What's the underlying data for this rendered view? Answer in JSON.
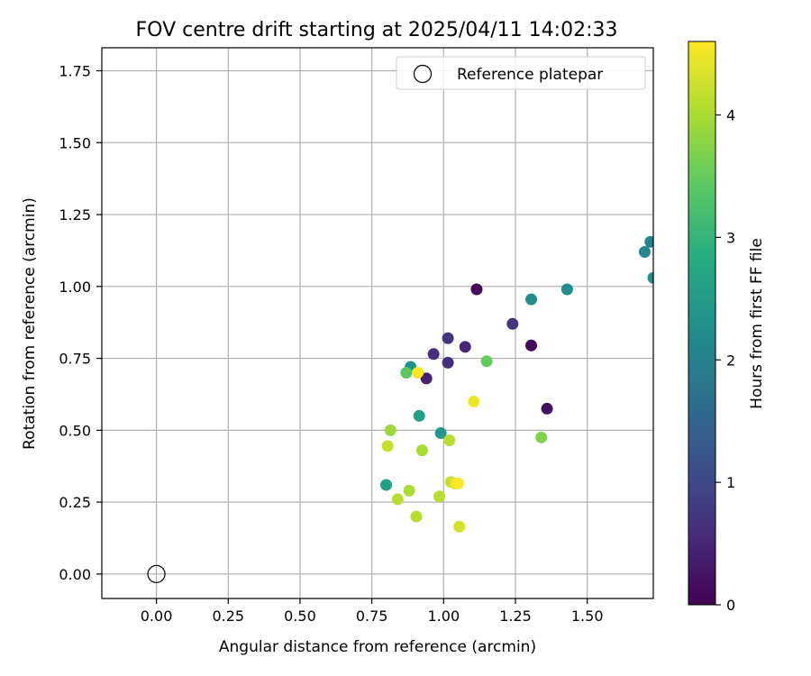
{
  "chart_data": {
    "type": "scatter",
    "title": "FOV centre drift starting at 2025/04/11 14:02:33",
    "xlabel": "Angular distance from reference (arcmin)",
    "ylabel": "Rotation from reference (arcmin)",
    "xlim": [
      -0.19,
      1.73
    ],
    "ylim": [
      -0.085,
      1.83
    ],
    "xticks": [
      "0.00",
      "0.25",
      "0.50",
      "0.75",
      "1.00",
      "1.25",
      "1.50"
    ],
    "yticks": [
      "0.00",
      "0.25",
      "0.50",
      "0.75",
      "1.00",
      "1.25",
      "1.50",
      "1.75"
    ],
    "grid": true,
    "legend": {
      "placement": "top-right",
      "entries": [
        "Reference platepar"
      ]
    },
    "reference_point": {
      "x": 0.0,
      "y": 0.0
    },
    "colorbar": {
      "label": "Hours from first FF file",
      "range": [
        0,
        4.6
      ],
      "ticks": [
        "0",
        "1",
        "2",
        "3",
        "4"
      ],
      "colormap": "viridis"
    },
    "points": [
      {
        "x": 1.115,
        "y": 0.99,
        "h": 0.1
      },
      {
        "x": 1.305,
        "y": 0.795,
        "h": 0.1
      },
      {
        "x": 1.36,
        "y": 0.575,
        "h": 0.2
      },
      {
        "x": 0.94,
        "y": 0.68,
        "h": 0.4
      },
      {
        "x": 1.075,
        "y": 0.79,
        "h": 0.5
      },
      {
        "x": 0.965,
        "y": 0.765,
        "h": 0.6
      },
      {
        "x": 1.015,
        "y": 0.735,
        "h": 0.6
      },
      {
        "x": 1.24,
        "y": 0.87,
        "h": 0.7
      },
      {
        "x": 1.015,
        "y": 0.82,
        "h": 0.7
      },
      {
        "x": 1.72,
        "y": 1.155,
        "h": 2.0
      },
      {
        "x": 1.7,
        "y": 1.12,
        "h": 2.1
      },
      {
        "x": 1.73,
        "y": 1.03,
        "h": 2.3
      },
      {
        "x": 1.305,
        "y": 0.955,
        "h": 2.2
      },
      {
        "x": 1.43,
        "y": 0.99,
        "h": 2.2
      },
      {
        "x": 0.885,
        "y": 0.72,
        "h": 2.3
      },
      {
        "x": 0.99,
        "y": 0.49,
        "h": 2.4
      },
      {
        "x": 0.915,
        "y": 0.55,
        "h": 2.6
      },
      {
        "x": 0.8,
        "y": 0.31,
        "h": 2.6
      },
      {
        "x": 0.87,
        "y": 0.7,
        "h": 3.4
      },
      {
        "x": 1.15,
        "y": 0.74,
        "h": 3.5
      },
      {
        "x": 1.34,
        "y": 0.475,
        "h": 3.7
      },
      {
        "x": 0.815,
        "y": 0.5,
        "h": 3.9
      },
      {
        "x": 0.925,
        "y": 0.43,
        "h": 4.0
      },
      {
        "x": 0.88,
        "y": 0.29,
        "h": 4.0
      },
      {
        "x": 0.84,
        "y": 0.26,
        "h": 4.1
      },
      {
        "x": 0.905,
        "y": 0.2,
        "h": 4.1
      },
      {
        "x": 0.985,
        "y": 0.27,
        "h": 4.1
      },
      {
        "x": 1.02,
        "y": 0.465,
        "h": 4.1
      },
      {
        "x": 0.805,
        "y": 0.445,
        "h": 4.2
      },
      {
        "x": 1.025,
        "y": 0.32,
        "h": 4.2
      },
      {
        "x": 1.055,
        "y": 0.165,
        "h": 4.3
      },
      {
        "x": 1.04,
        "y": 0.315,
        "h": 4.4
      },
      {
        "x": 1.105,
        "y": 0.6,
        "h": 4.5
      },
      {
        "x": 0.91,
        "y": 0.7,
        "h": 4.6
      },
      {
        "x": 1.05,
        "y": 0.315,
        "h": 4.6
      }
    ]
  }
}
